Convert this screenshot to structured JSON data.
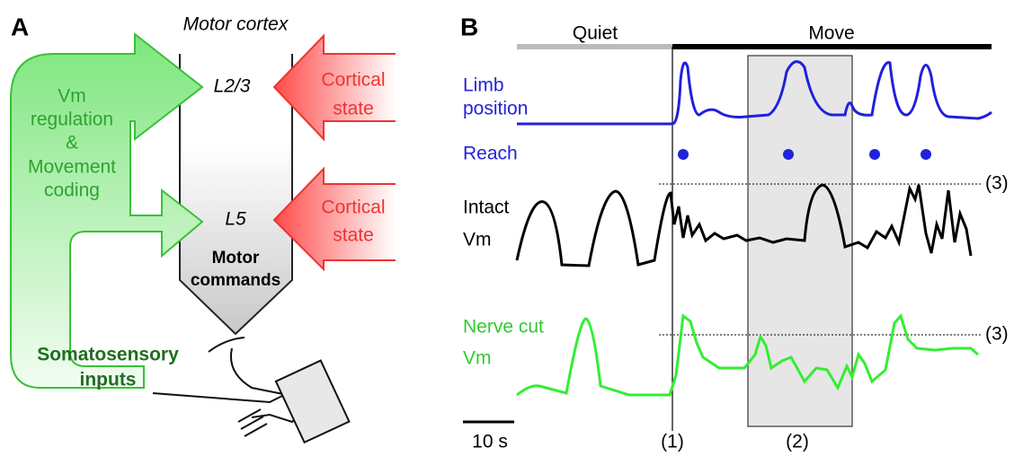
{
  "panel_a": {
    "label": "A",
    "title": "Motor cortex",
    "layer_top": "L2/3",
    "layer_bottom": "L5",
    "cortical_state_top": [
      "Cortical",
      "state"
    ],
    "cortical_state_bottom": [
      "Cortical",
      "state"
    ],
    "regulation": [
      "Vm",
      "regulation",
      "&",
      "Movement",
      "coding"
    ],
    "motor_commands": [
      "Motor",
      "commands"
    ],
    "somatosensory": [
      "Somatosensory",
      "inputs"
    ]
  },
  "panel_b": {
    "label": "B",
    "quiet": "Quiet",
    "move": "Move",
    "limb": [
      "Limb",
      "position"
    ],
    "reach": "Reach",
    "intact": [
      "Intact",
      "Vm"
    ],
    "nerve_cut": [
      "Nerve cut",
      "Vm"
    ],
    "threshold_top": "(3)",
    "threshold_bottom": "(3)",
    "scale": "10 s",
    "marker_1": "(1)",
    "marker_2": "(2)"
  }
}
